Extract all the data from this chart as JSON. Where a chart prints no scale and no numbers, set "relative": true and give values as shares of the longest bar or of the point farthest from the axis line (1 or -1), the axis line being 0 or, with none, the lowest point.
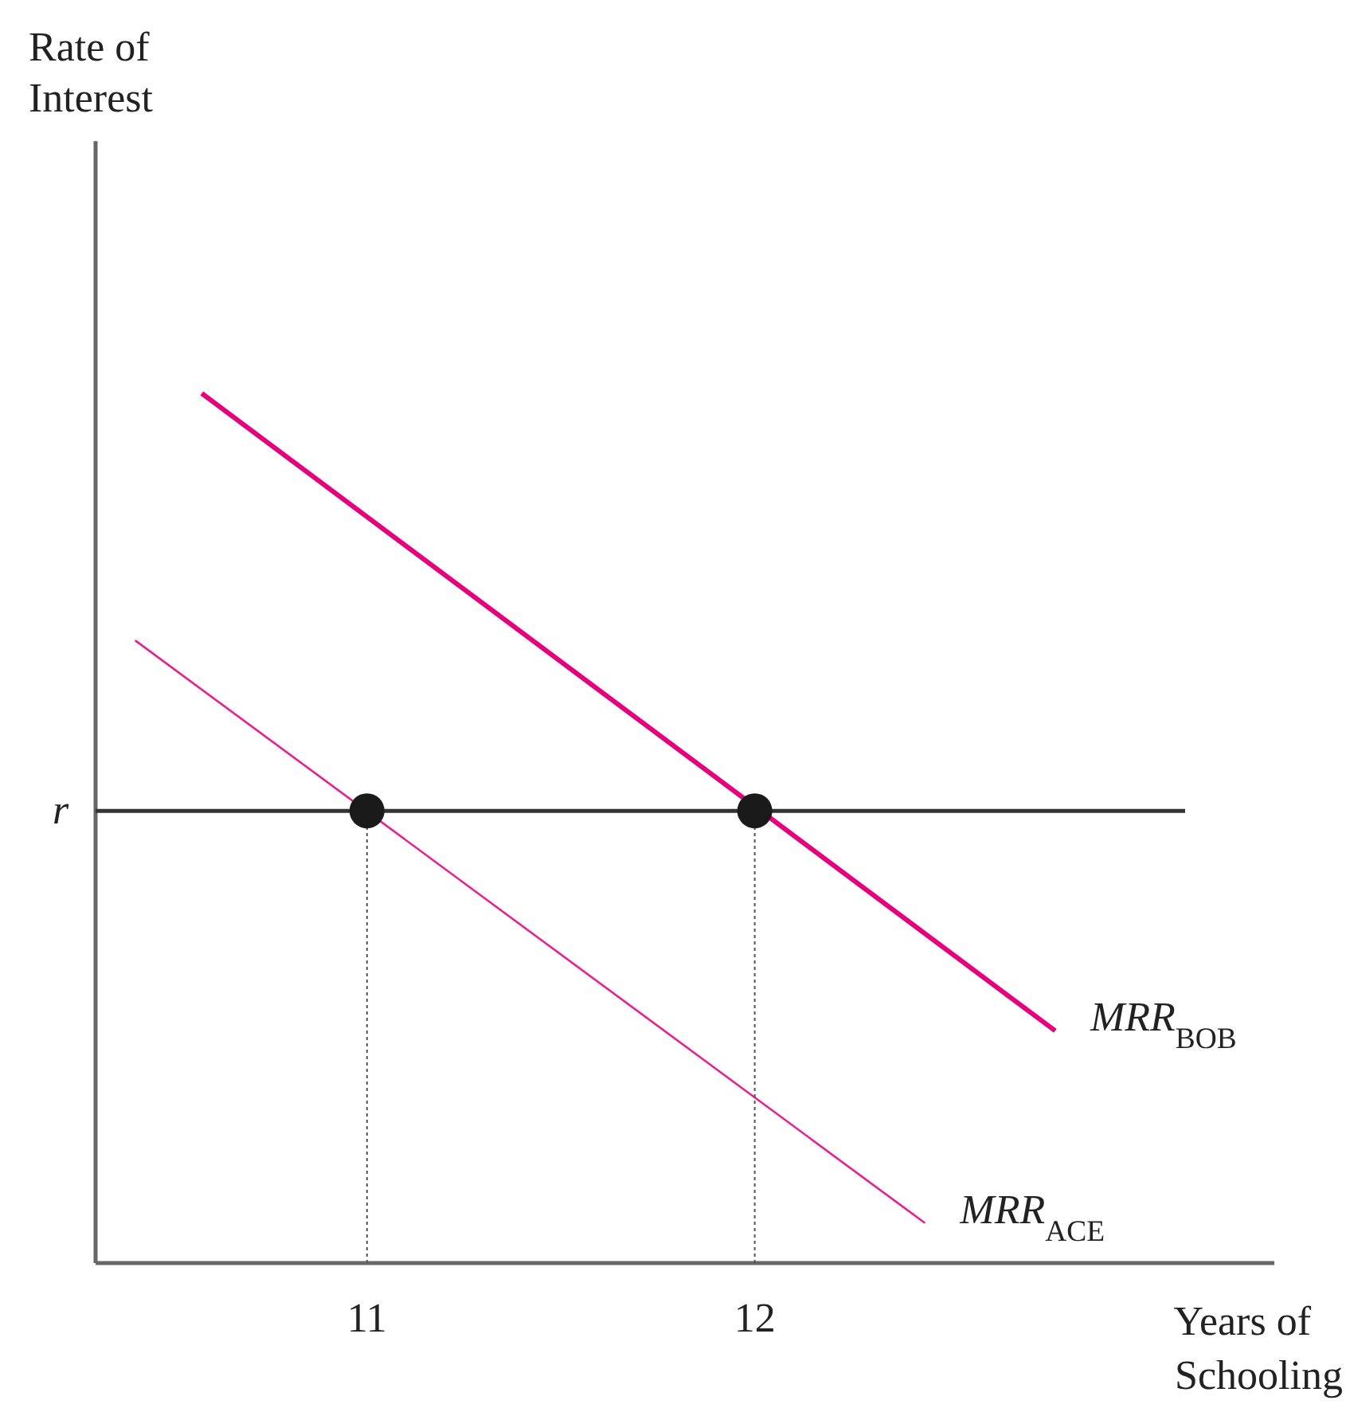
{
  "chart_data": {
    "type": "line",
    "xlabel": "Years of Schooling",
    "relative": true,
    "xlim": [
      10.3,
      13.34
    ],
    "xticks": [
      11,
      12
    ],
    "grid": false,
    "annotations": [
      "Rate of Interest",
      {
        "text": "r",
        "x": 10.3,
        "y": 0.52
      }
    ],
    "series": [
      {
        "name": "MRR$_{BOB}$",
        "color": "#e6007e",
        "x": [
          10.574,
          12.775
        ],
        "values": [
          1,
          0.267
        ]
      },
      {
        "name": "MRR$_{ACE}$",
        "color": "#ea1f8c",
        "x": [
          10.402,
          12.439
        ],
        "values": [
          0.716,
          0.046
        ]
      },
      {
        "color": "#333333",
        "x": [
          10.3,
          13.11
        ],
        "values": [
          0.52,
          0.52
        ]
      },
      {
        "color": "#555555",
        "x": [
          11,
          11
        ],
        "values": [
          0,
          0.52
        ],
        "line_style": "dotted"
      },
      {
        "color": "#555555",
        "x": [
          12,
          12
        ],
        "values": [
          0,
          0.52
        ],
        "line_style": "dotted"
      },
      {
        "type": "scatter",
        "color": "#1a1a1a",
        "x": [
          11,
          12
        ],
        "values": [
          0.52,
          0.52
        ],
        "marker": "circle"
      }
    ]
  }
}
